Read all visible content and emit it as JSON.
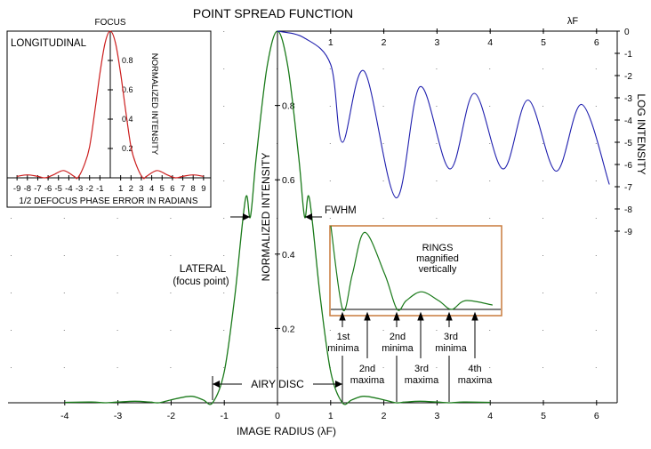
{
  "title": "POINT SPREAD FUNCTION",
  "colors": {
    "lateral": "#1a7a1a",
    "longitudinal": "#cc1f1f",
    "log": "#1f1fae",
    "inset_frame": "#c97a3c",
    "grid_dot": "#808080"
  },
  "main": {
    "xlabel": "IMAGE RADIUS  (λF)",
    "ylabel": "NORMALIZED INTENSITY",
    "xticks": [
      "-4",
      "-3",
      "-2",
      "-1",
      "0",
      "1",
      "2",
      "3",
      "4",
      "5",
      "6"
    ],
    "yticks": [
      "0.2",
      "0.4",
      "0.6",
      "0.8"
    ]
  },
  "log_plot": {
    "unit_label": "λF",
    "ylabel": "LOG INTENSITY",
    "xticks": [
      "1",
      "2",
      "3",
      "4",
      "5",
      "6"
    ],
    "yticks": [
      "0",
      "-1",
      "-2",
      "-3",
      "-4",
      "-5",
      "-6",
      "-7",
      "-8",
      "-9"
    ]
  },
  "longitudinal": {
    "title": "LONGITUDINAL",
    "focus_label": "FOCUS",
    "ylabel": "NORMALIZED INTENSITY",
    "xlabel": "1/2 DEFOCUS PHASE ERROR IN RADIANS",
    "xticks": [
      "-9",
      "-8",
      "-7",
      "-6",
      "-5",
      "-4",
      "-3",
      "-2",
      "-1",
      "1",
      "2",
      "3",
      "4",
      "5",
      "6",
      "7",
      "8",
      "9"
    ],
    "yticks": [
      "0.2",
      "0.4",
      "0.6",
      "0.8"
    ]
  },
  "rings_inset": {
    "line1": "RINGS",
    "line2": "magnified",
    "line3": "vertically"
  },
  "annotations": {
    "fwhm": "FWHM",
    "lateral_line1": "LATERAL",
    "lateral_line2": "(focus point)",
    "airy_disc": "AIRY DISC",
    "min1_a": "1st",
    "min1_b": "minima",
    "min2_a": "2nd",
    "min2_b": "minima",
    "min3_a": "3rd",
    "min3_b": "minima",
    "max2_a": "2nd",
    "max2_b": "maxima",
    "max3_a": "3rd",
    "max3_b": "maxima",
    "max4_a": "4th",
    "max4_b": "maxima"
  },
  "chart_data": [
    {
      "type": "line",
      "title": "POINT SPREAD FUNCTION",
      "xlabel": "IMAGE RADIUS  (λF)",
      "ylabel": "NORMALIZED INTENSITY",
      "xlim": [
        -5,
        6.3
      ],
      "ylim": [
        0,
        1
      ],
      "series": [
        {
          "name": "LATERAL",
          "x": [
            -4.0,
            -3.5,
            -3.24,
            -3.0,
            -2.68,
            -2.4,
            -2.23,
            -2.0,
            -1.63,
            -1.4,
            -1.22,
            -1.0,
            -0.8,
            -0.6,
            -0.51,
            -0.4,
            -0.2,
            0,
            0.2,
            0.4,
            0.51,
            0.6,
            0.8,
            1.0,
            1.22,
            1.4,
            1.63,
            2.0,
            2.23,
            2.4,
            2.68,
            3.0,
            3.24,
            3.5,
            4.0
          ],
          "y": [
            0.001,
            0.002,
            0.0,
            0.002,
            0.004,
            0.002,
            0.0,
            0.008,
            0.0175,
            0.008,
            0.0,
            0.084,
            0.29,
            0.55,
            0.5,
            0.66,
            0.9,
            1.0,
            0.9,
            0.66,
            0.5,
            0.55,
            0.29,
            0.084,
            0.0,
            0.008,
            0.0175,
            0.008,
            0.0,
            0.002,
            0.004,
            0.002,
            0.0,
            0.002,
            0.001
          ]
        }
      ]
    },
    {
      "type": "line",
      "title": "LONGITUDINAL",
      "xlabel": "1/2 DEFOCUS PHASE ERROR IN RADIANS",
      "ylabel": "NORMALIZED INTENSITY",
      "xlim": [
        -9.5,
        9.5
      ],
      "ylim": [
        0,
        1
      ],
      "series": [
        {
          "name": "LONGITUDINAL",
          "x": [
            -9,
            -8,
            -7,
            -6.28,
            -5.5,
            -4.5,
            -3.5,
            -3.14,
            -2.5,
            -2,
            -1.5,
            -1,
            -0.5,
            0,
            0.5,
            1,
            1.5,
            2,
            2.5,
            3.14,
            3.5,
            4.5,
            5.5,
            6.28,
            7,
            8,
            9
          ],
          "y": [
            0.01,
            0.02,
            0.01,
            0.0,
            0.02,
            0.05,
            0.01,
            0.0,
            0.09,
            0.21,
            0.45,
            0.71,
            0.92,
            1.0,
            0.92,
            0.71,
            0.45,
            0.21,
            0.09,
            0.0,
            0.01,
            0.05,
            0.02,
            0.0,
            0.01,
            0.02,
            0.01
          ]
        }
      ]
    },
    {
      "type": "line",
      "title": "",
      "xlabel": "λF",
      "ylabel": "LOG INTENSITY",
      "xlim": [
        0,
        6.3
      ],
      "ylim": [
        -9,
        0
      ],
      "series": [
        {
          "name": "",
          "x": [
            0,
            0.5,
            1.0,
            1.22,
            1.63,
            2.23,
            2.68,
            3.24,
            3.7,
            4.24,
            4.71,
            5.24,
            5.72,
            6.24
          ],
          "y": [
            0,
            -0.3,
            -1.5,
            -5.0,
            -1.8,
            -7.5,
            -2.5,
            -6.2,
            -2.8,
            -6.2,
            -3.1,
            -6.3,
            -3.3,
            -6.9
          ]
        }
      ]
    }
  ]
}
